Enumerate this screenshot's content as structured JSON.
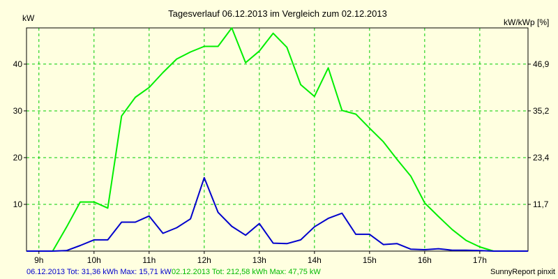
{
  "chart_data": {
    "type": "line",
    "title": "Tagesverlauf 06.12.2013 im Vergleich zum 02.12.2013",
    "ylabel": "kW",
    "y2label": "kW/kWp [%]",
    "ylim": [
      0,
      47.75
    ],
    "xlim": [
      8.775,
      17.875
    ],
    "x_ticks": [
      9,
      10,
      11,
      12,
      13,
      14,
      15,
      16,
      17
    ],
    "x_tick_labels": [
      "9h",
      "10h",
      "11h",
      "12h",
      "13h",
      "14h",
      "15h",
      "16h",
      "17h"
    ],
    "y_ticks": [
      10,
      20,
      30,
      40
    ],
    "y_tick_labels": [
      "10",
      "20",
      "30",
      "40"
    ],
    "y2_ticks": [
      11.7,
      23.4,
      35.2,
      46.9
    ],
    "y2_tick_labels": [
      "11,7",
      "23,4",
      "35,2",
      "46,9"
    ],
    "grid": true,
    "footer_left": "06.12.2013 Tot: 31,36 kWh Max: 15,71 kW",
    "footer_right": "02.12.2013 Tot: 212,58 kWh Max: 47,75 kW",
    "credit": "SunnyReport pinxit",
    "colors": {
      "background": "#ffffe0",
      "grid": "#00cc00",
      "axis": "#000000",
      "series_1": "#0000cc",
      "series_2": "#00ee00"
    },
    "series": [
      {
        "label": "06.12.2013",
        "color": "#0000cc",
        "x": [
          8.775,
          9.25,
          9.5,
          9.75,
          10.0,
          10.25,
          10.5,
          10.75,
          11.0,
          11.25,
          11.5,
          11.75,
          12.0,
          12.25,
          12.5,
          12.75,
          13.0,
          13.25,
          13.5,
          13.75,
          14.0,
          14.25,
          14.5,
          14.75,
          15.0,
          15.25,
          15.5,
          15.75,
          16.0,
          16.25,
          16.5,
          16.75,
          17.0,
          17.25,
          17.5,
          17.875
        ],
        "y": [
          0,
          0,
          0.1,
          1.2,
          2.4,
          2.4,
          6.2,
          6.2,
          7.5,
          3.8,
          5.0,
          6.9,
          15.7,
          8.3,
          5.3,
          3.4,
          5.9,
          1.7,
          1.6,
          2.4,
          5.2,
          7.0,
          8.1,
          3.6,
          3.6,
          1.4,
          1.6,
          0.4,
          0.3,
          0.5,
          0.2,
          0.2,
          0.1,
          0,
          0,
          0
        ]
      },
      {
        "label": "02.12.2013",
        "color": "#00ee00",
        "x": [
          8.775,
          9.0,
          9.25,
          9.5,
          9.75,
          10.0,
          10.25,
          10.5,
          10.75,
          11.0,
          11.25,
          11.5,
          11.75,
          12.0,
          12.25,
          12.5,
          12.75,
          13.0,
          13.25,
          13.5,
          13.75,
          14.0,
          14.25,
          14.5,
          14.75,
          15.0,
          15.25,
          15.5,
          15.75,
          16.0,
          16.25,
          16.5,
          16.75,
          17.0,
          17.25,
          17.5,
          17.875
        ],
        "y": [
          0,
          0,
          0,
          5.1,
          10.5,
          10.5,
          9.2,
          28.9,
          32.9,
          35.0,
          38.2,
          41.1,
          42.6,
          43.8,
          43.8,
          47.75,
          40.3,
          42.8,
          46.6,
          43.6,
          35.6,
          33.1,
          39.2,
          30.1,
          29.3,
          26.3,
          23.4,
          19.6,
          16.0,
          10.3,
          7.4,
          4.6,
          2.3,
          0.9,
          0,
          0,
          0
        ]
      }
    ]
  }
}
